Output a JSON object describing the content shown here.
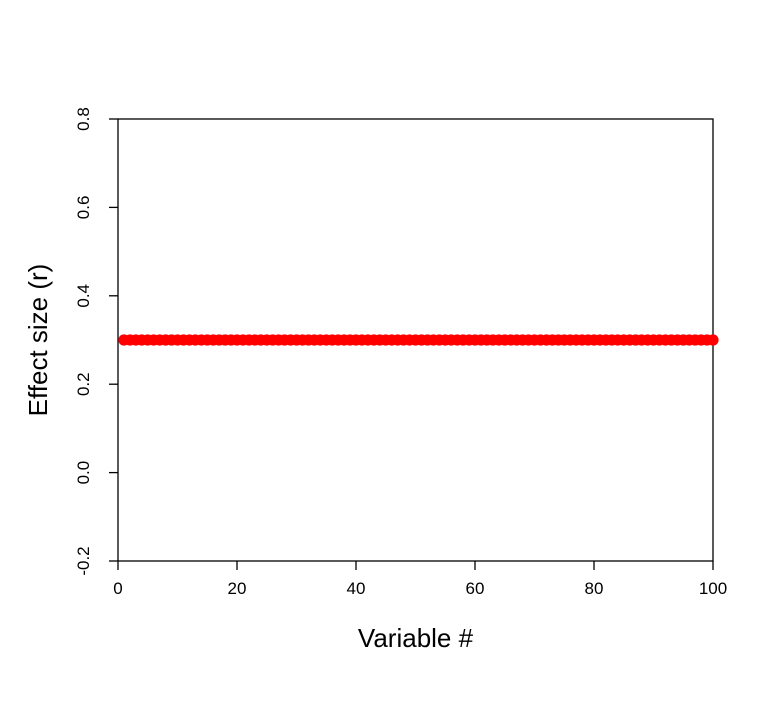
{
  "chart_data": {
    "type": "scatter",
    "title": "",
    "xlabel": "Variable #",
    "ylabel": "Effect size (r)",
    "xlim": [
      0,
      100
    ],
    "ylim": [
      -0.2,
      0.8
    ],
    "x_ticks": [
      0,
      20,
      40,
      60,
      80,
      100
    ],
    "y_ticks": [
      -0.2,
      0.0,
      0.2,
      0.4,
      0.6,
      0.8
    ],
    "x_tick_labels": [
      "0",
      "20",
      "40",
      "60",
      "80",
      "100"
    ],
    "y_tick_labels": [
      "-0.2",
      "0.0",
      "0.2",
      "0.4",
      "0.6",
      "0.8"
    ],
    "grid": false,
    "legend": "none",
    "series": [
      {
        "color": "#ff0000",
        "x_from": 1,
        "x_to": 100,
        "y": 0.3
      }
    ]
  }
}
